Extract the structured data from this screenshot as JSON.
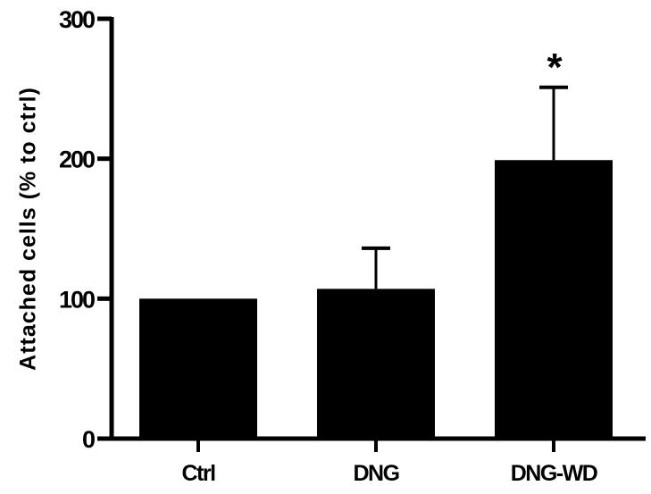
{
  "chart_data": {
    "type": "bar",
    "title": "",
    "xlabel": "",
    "ylabel": "Attached cells (% to ctrl)",
    "ylim": [
      0,
      300
    ],
    "yticks": [
      0,
      100,
      200,
      300
    ],
    "categories": [
      "Ctrl",
      "DNG",
      "DNG-WD"
    ],
    "values": [
      100,
      107,
      199
    ],
    "error_upper": [
      0,
      136,
      251
    ],
    "error_sd": [
      0,
      29,
      52
    ],
    "annotations": [
      {
        "category": "DNG-WD",
        "text": "*"
      }
    ],
    "grid": false,
    "legend": null,
    "bar_color": "#000000"
  },
  "labels": {
    "ylabel": "Attached cells (% to ctrl)",
    "yticks": [
      "0",
      "100",
      "200",
      "300"
    ],
    "categories": [
      "Ctrl",
      "DNG",
      "DNG-WD"
    ],
    "significance": "*"
  }
}
